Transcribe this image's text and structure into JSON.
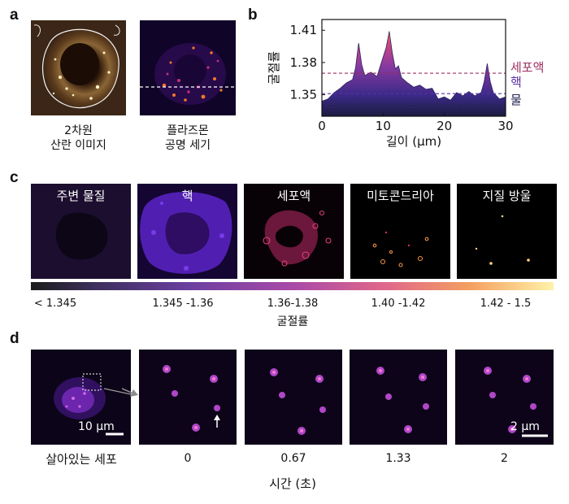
{
  "panels": {
    "a": {
      "label": "a",
      "caption_left": [
        "2차원",
        "산란 이미지"
      ],
      "caption_right": [
        "플라즈몬",
        "공명 세기"
      ]
    },
    "b": {
      "label": "b",
      "level_labels": [
        "세포액",
        "핵",
        "물"
      ],
      "colors": {
        "cytosol": "#9b2d5e",
        "nucleus": "#5a2fa3",
        "water": "#23234d"
      }
    },
    "c": {
      "label": "c",
      "tiles": [
        "주변 물질",
        "핵",
        "세포액",
        "미토콘드리아",
        "지질 방울"
      ],
      "colorbar_ticks": [
        "< 1.345",
        "1.345 -1.36",
        "1.36-1.38",
        "1.40 -1.42",
        "1.42 - 1.5"
      ],
      "colorbar_label": "굴절률"
    },
    "d": {
      "label": "d",
      "scale_large": "10 μm",
      "scale_small": "2 μm",
      "live_cell": "살아있는 세포",
      "times": [
        "0",
        "0.67",
        "1.33",
        "2"
      ],
      "time_axis_label": "시간 (초)"
    }
  },
  "chart_data": {
    "type": "area",
    "xlabel": "길이 (μm)",
    "ylabel": "굴절률",
    "xlim": [
      0,
      30
    ],
    "ylim": [
      1.33,
      1.42
    ],
    "xticks": [
      0,
      10,
      20,
      30
    ],
    "yticks": [
      1.35,
      1.38,
      1.41
    ],
    "reference_lines": [
      {
        "name": "세포액",
        "y": 1.37
      },
      {
        "name": "핵",
        "y": 1.351
      },
      {
        "name": "물",
        "y": 1.34
      }
    ],
    "x": [
      0,
      1,
      2,
      3,
      4,
      5,
      5.5,
      6,
      6.5,
      7,
      8,
      9,
      10,
      10.5,
      11,
      11.5,
      12,
      12.5,
      13,
      14,
      15,
      16,
      17,
      18,
      19,
      20,
      21,
      22,
      23,
      24,
      25,
      26,
      26.5,
      27,
      27.5,
      28,
      29,
      30
    ],
    "y": [
      1.344,
      1.346,
      1.352,
      1.356,
      1.361,
      1.364,
      1.375,
      1.398,
      1.378,
      1.368,
      1.371,
      1.367,
      1.385,
      1.394,
      1.409,
      1.389,
      1.374,
      1.377,
      1.366,
      1.361,
      1.357,
      1.359,
      1.355,
      1.356,
      1.346,
      1.348,
      1.345,
      1.352,
      1.349,
      1.353,
      1.349,
      1.352,
      1.362,
      1.379,
      1.362,
      1.352,
      1.346,
      1.348
    ]
  }
}
